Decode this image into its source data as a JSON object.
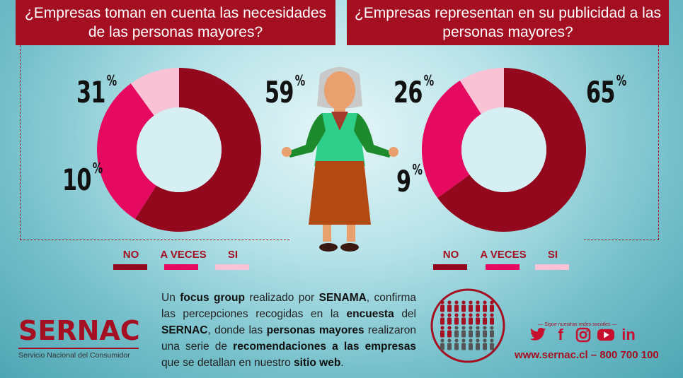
{
  "questions": {
    "left": "¿Empresas toman en cuenta las necesidades de las personas mayores?",
    "right": "¿Empresas representan en su publicidad a las personas mayores?"
  },
  "chart_data": [
    {
      "type": "pie",
      "title": "¿Empresas toman en cuenta las necesidades de las personas mayores?",
      "categories": [
        "NO",
        "A VECES",
        "SI"
      ],
      "values": [
        59,
        31,
        10
      ],
      "value_labels": [
        "59",
        "31",
        "10"
      ],
      "unit": "%",
      "legend": "bottom"
    },
    {
      "type": "pie",
      "title": "¿Empresas representan en su publicidad a las personas mayores?",
      "categories": [
        "NO",
        "A VECES",
        "SI"
      ],
      "values": [
        65,
        26,
        9
      ],
      "value_labels": [
        "65",
        "26",
        "9"
      ],
      "unit": "%",
      "legend": "bottom"
    }
  ],
  "colors": {
    "no": "#93081d",
    "a_veces": "#e5095f",
    "si": "#f9c3d5",
    "brand": "#a50f22"
  },
  "paragraph": {
    "p1": "Un ",
    "b1": "focus group",
    "p2": " realizado por ",
    "b2": "SENAMA",
    "p3": ", confirma las percepciones recogidas en la ",
    "b3": "encuesta",
    "p4": " del ",
    "b4": "SERNAC",
    "p5": ", donde las ",
    "b5": "personas mayores",
    "p6": " realizaron una serie de ",
    "b6": "recomendaciones a las empresas",
    "p7": " que se detallan en nuestro ",
    "b7": "sitio web",
    "p8": "."
  },
  "logo": {
    "word": "SERNAC",
    "subtitle": "Servicio Nacional del Consumidor"
  },
  "social": {
    "tagline": "— Sigue nuestras redes sociales —",
    "icons": [
      "twitter-icon",
      "facebook-icon",
      "instagram-icon",
      "youtube-icon",
      "linkedin-icon"
    ],
    "facebook_glyph": "f",
    "linkedin_glyph": "in"
  },
  "contact": "www.sernac.cl – 800 700 100"
}
